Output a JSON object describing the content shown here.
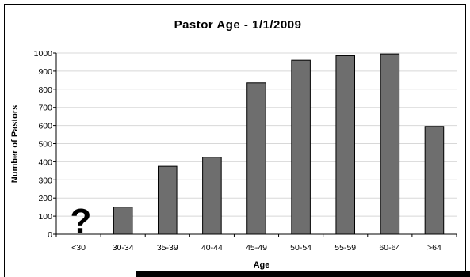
{
  "chart_data": {
    "type": "bar",
    "title": "Pastor Age - 1/1/2009",
    "xlabel": "Age",
    "ylabel": "Number of Pastors",
    "categories": [
      "<30",
      "30-34",
      "35-39",
      "40-44",
      "45-49",
      "50-54",
      "55-59",
      "60-64",
      ">64"
    ],
    "values": [
      null,
      150,
      375,
      425,
      835,
      960,
      985,
      995,
      595
    ],
    "ylim": [
      0,
      1000
    ],
    "yticks": [
      "0",
      "100",
      "200",
      "300",
      "400",
      "500",
      "600",
      "700",
      "800",
      "900",
      "1000"
    ],
    "grid": true,
    "bar_color": "#6e6e6e",
    "annotation": "?"
  }
}
